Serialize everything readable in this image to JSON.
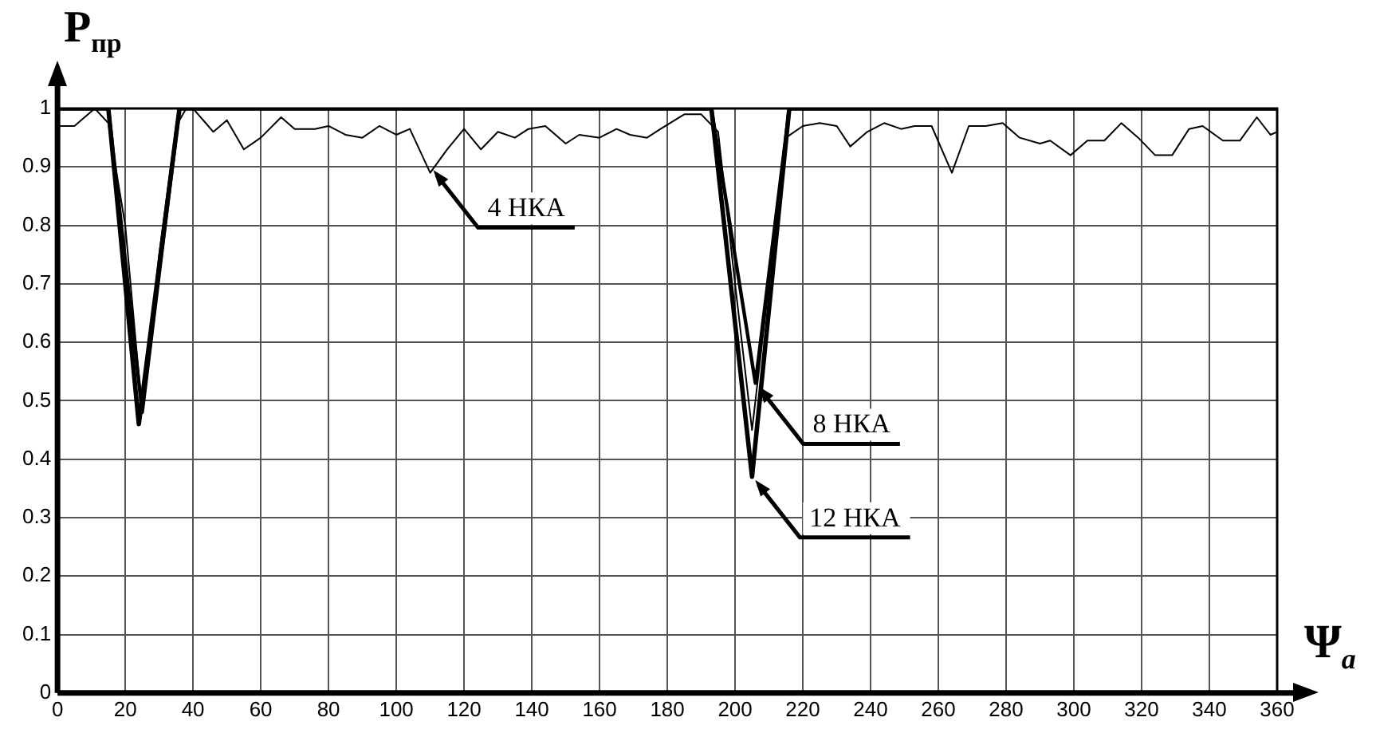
{
  "chart_data": {
    "type": "line",
    "xlabel": "Ψ$_{a}$",
    "ylabel": "P$_{пр}$",
    "series": [
      {
        "color": "#000000",
        "x": [
          0,
          5,
          11,
          15,
          20,
          25,
          30,
          35,
          38,
          40,
          46,
          50,
          55,
          60,
          66,
          70,
          76,
          80,
          85,
          90,
          95,
          100,
          104,
          110,
          115,
          120,
          125,
          130,
          135,
          139,
          144,
          150,
          154,
          160,
          165,
          169,
          174,
          178,
          185,
          190,
          195,
          200,
          205,
          210,
          215,
          220,
          225,
          230,
          234,
          239,
          244,
          249,
          253,
          258,
          264,
          269,
          274,
          279,
          284,
          290,
          293,
          299,
          304,
          309,
          314,
          319,
          324,
          329,
          334,
          338,
          344,
          349,
          354,
          358,
          360
        ],
        "values": [
          0.97,
          0.97,
          1,
          0.975,
          0.8,
          0.48,
          0.75,
          0.97,
          1,
          1,
          0.96,
          0.98,
          0.93,
          0.95,
          0.985,
          0.965,
          0.965,
          0.97,
          0.955,
          0.95,
          0.97,
          0.955,
          0.965,
          0.89,
          0.93,
          0.965,
          0.93,
          0.96,
          0.95,
          0.965,
          0.97,
          0.94,
          0.955,
          0.95,
          0.965,
          0.955,
          0.95,
          0.965,
          0.99,
          0.99,
          0.96,
          0.7,
          0.45,
          0.7,
          0.95,
          0.97,
          0.975,
          0.97,
          0.935,
          0.96,
          0.975,
          0.965,
          0.97,
          0.97,
          0.89,
          0.97,
          0.97,
          0.975,
          0.95,
          0.94,
          0.945,
          0.92,
          0.945,
          0.945,
          0.975,
          0.95,
          0.92,
          0.92,
          0.965,
          0.97,
          0.945,
          0.945,
          0.985,
          0.955,
          0.96
        ]
      },
      {
        "color": "#000000",
        "x": [
          0,
          15,
          25,
          36,
          193,
          206,
          216,
          360
        ],
        "values": [
          1,
          1,
          0.48,
          1,
          1,
          0.53,
          1,
          1
        ]
      },
      {
        "color": "#000000",
        "x": [
          0,
          15,
          24,
          36,
          193,
          205,
          216,
          360
        ],
        "values": [
          1,
          1,
          0.46,
          1,
          1,
          0.37,
          1,
          1
        ]
      }
    ],
    "xlim": [
      0,
      360
    ],
    "xticks": [
      0,
      20,
      40,
      60,
      80,
      100,
      120,
      140,
      160,
      180,
      200,
      220,
      240,
      260,
      280,
      300,
      320,
      340,
      360
    ],
    "ylim": [
      0,
      1
    ],
    "yticks": [
      0,
      0.1,
      0.2,
      0.3,
      0.4,
      0.5,
      0.6,
      0.7,
      0.8,
      0.9,
      1
    ],
    "grid": true,
    "legend": false,
    "marker": "none",
    "line_style": "solid",
    "annotations": [
      {
        "text": "4 НКА",
        "x": 110,
        "y": 0.9
      },
      {
        "text": "8 НКА",
        "x": 206,
        "y": 0.53
      },
      {
        "text": "12 НКА",
        "x": 205,
        "y": 0.37
      }
    ]
  }
}
